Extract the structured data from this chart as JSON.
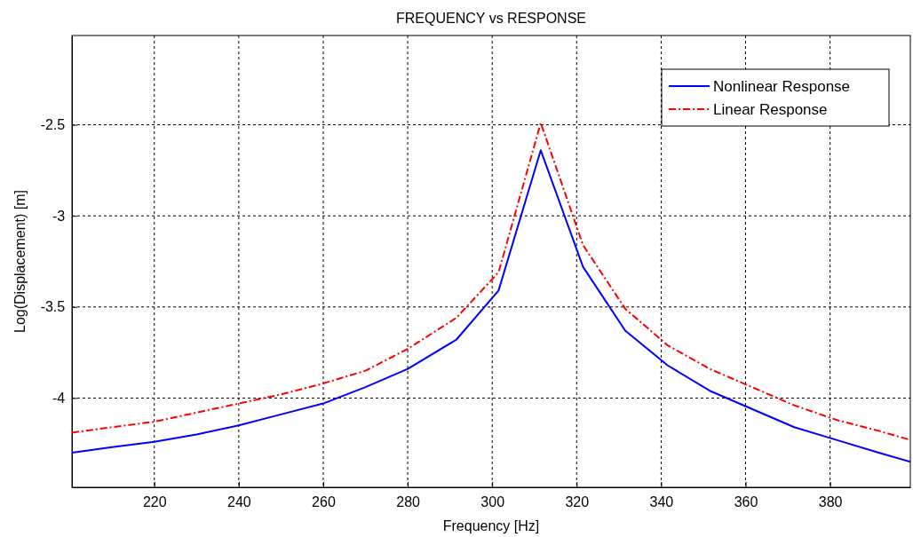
{
  "chart_data": {
    "type": "line",
    "title": "FREQUENCY vs RESPONSE",
    "xlabel": "Frequency [Hz]",
    "ylabel": "Log(Displacement) [m]",
    "x": [
      200.5,
      210,
      220,
      230,
      240,
      250,
      260,
      270,
      280,
      291.5,
      301.5,
      311.5,
      321.5,
      331.5,
      341.5,
      351.5,
      361.5,
      371.5,
      381.5,
      391.5,
      399
    ],
    "series": [
      {
        "name": "Nonlinear Response",
        "color": "#0000ff",
        "line_style": "solid",
        "values": [
          -4.3,
          -4.27,
          -4.24,
          -4.2,
          -4.15,
          -4.09,
          -4.03,
          -3.94,
          -3.84,
          -3.68,
          -3.41,
          -2.64,
          -3.28,
          -3.63,
          -3.82,
          -3.96,
          -4.06,
          -4.16,
          -4.23,
          -4.3,
          -4.35
        ]
      },
      {
        "name": "Linear Response",
        "color": "#ff0000",
        "line_style": "dashdot",
        "values": [
          -4.19,
          -4.16,
          -4.13,
          -4.08,
          -4.03,
          -3.98,
          -3.92,
          -3.85,
          -3.73,
          -3.56,
          -3.31,
          -2.49,
          -3.16,
          -3.51,
          -3.71,
          -3.84,
          -3.94,
          -4.04,
          -4.12,
          -4.18,
          -4.23
        ]
      }
    ],
    "xlim": [
      200.5,
      399
    ],
    "xticks": [
      220,
      240,
      260,
      280,
      300,
      320,
      340,
      360,
      380
    ],
    "ylim": [
      -4.49,
      -2.01
    ],
    "yticks": [
      -4,
      -3.5,
      -3,
      -2.5
    ],
    "grid": true,
    "legend": "top right"
  }
}
